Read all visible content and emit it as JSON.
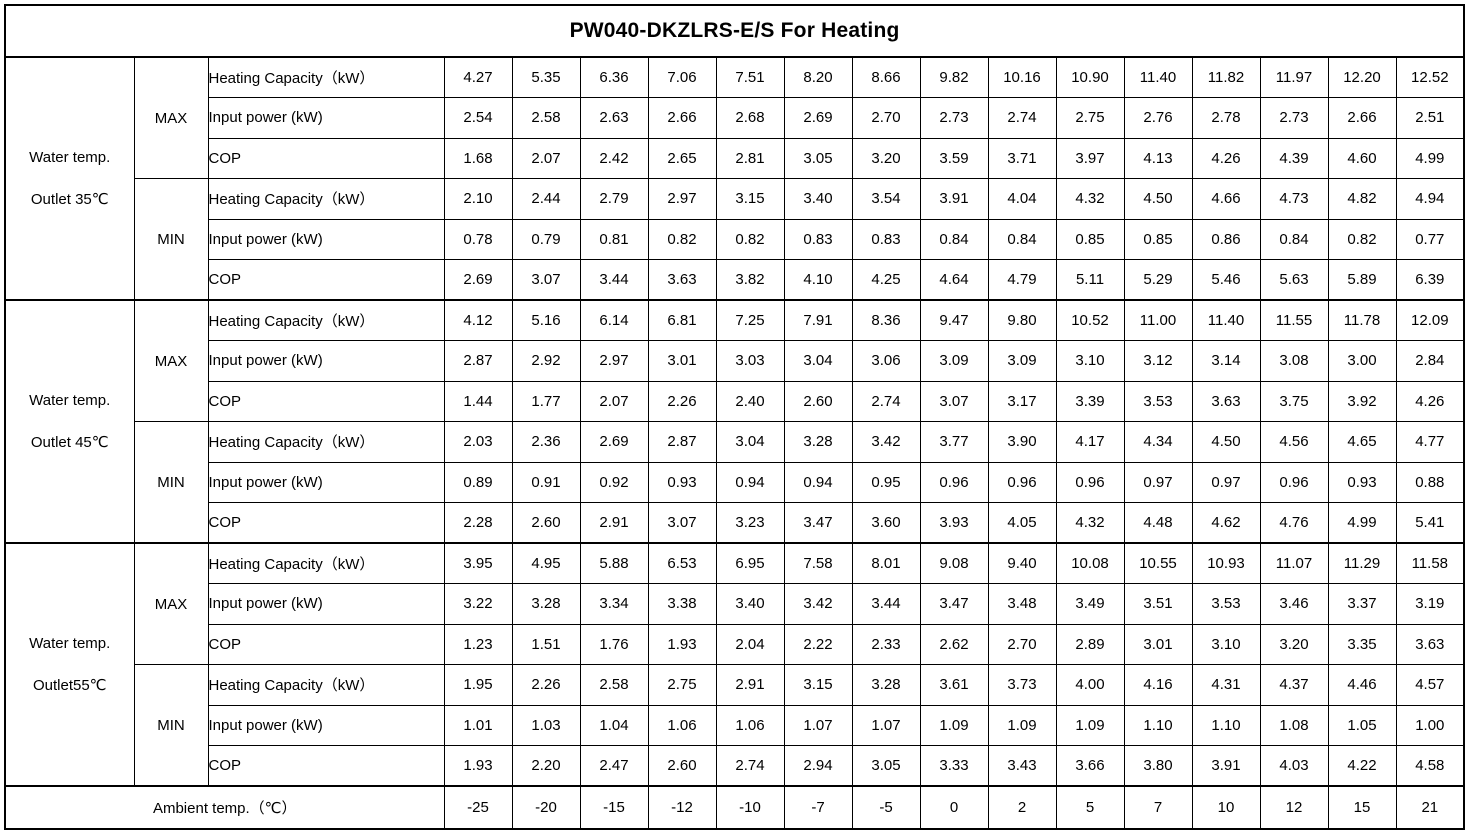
{
  "title": "PW040-DKZLRS-E/S For Heating",
  "colors": {
    "border": "#000000",
    "text": "#000000",
    "background": "#ffffff"
  },
  "row_labels": {
    "heating_capacity": "Heating Capacity（kW）",
    "input_power": "Input power (kW)",
    "cop": "COP",
    "max": "MAX",
    "min": "MIN"
  },
  "sections": [
    {
      "label_line1": "Water temp.",
      "label_line2": "Outlet 35℃",
      "max": {
        "heating_capacity": [
          "4.27",
          "5.35",
          "6.36",
          "7.06",
          "7.51",
          "8.20",
          "8.66",
          "9.82",
          "10.16",
          "10.90",
          "11.40",
          "11.82",
          "11.97",
          "12.20",
          "12.52"
        ],
        "input_power": [
          "2.54",
          "2.58",
          "2.63",
          "2.66",
          "2.68",
          "2.69",
          "2.70",
          "2.73",
          "2.74",
          "2.75",
          "2.76",
          "2.78",
          "2.73",
          "2.66",
          "2.51"
        ],
        "cop": [
          "1.68",
          "2.07",
          "2.42",
          "2.65",
          "2.81",
          "3.05",
          "3.20",
          "3.59",
          "3.71",
          "3.97",
          "4.13",
          "4.26",
          "4.39",
          "4.60",
          "4.99"
        ]
      },
      "min": {
        "heating_capacity": [
          "2.10",
          "2.44",
          "2.79",
          "2.97",
          "3.15",
          "3.40",
          "3.54",
          "3.91",
          "4.04",
          "4.32",
          "4.50",
          "4.66",
          "4.73",
          "4.82",
          "4.94"
        ],
        "input_power": [
          "0.78",
          "0.79",
          "0.81",
          "0.82",
          "0.82",
          "0.83",
          "0.83",
          "0.84",
          "0.84",
          "0.85",
          "0.85",
          "0.86",
          "0.84",
          "0.82",
          "0.77"
        ],
        "cop": [
          "2.69",
          "3.07",
          "3.44",
          "3.63",
          "3.82",
          "4.10",
          "4.25",
          "4.64",
          "4.79",
          "5.11",
          "5.29",
          "5.46",
          "5.63",
          "5.89",
          "6.39"
        ]
      }
    },
    {
      "label_line1": "Water temp.",
      "label_line2": "Outlet 45℃",
      "max": {
        "heating_capacity": [
          "4.12",
          "5.16",
          "6.14",
          "6.81",
          "7.25",
          "7.91",
          "8.36",
          "9.47",
          "9.80",
          "10.52",
          "11.00",
          "11.40",
          "11.55",
          "11.78",
          "12.09"
        ],
        "input_power": [
          "2.87",
          "2.92",
          "2.97",
          "3.01",
          "3.03",
          "3.04",
          "3.06",
          "3.09",
          "3.09",
          "3.10",
          "3.12",
          "3.14",
          "3.08",
          "3.00",
          "2.84"
        ],
        "cop": [
          "1.44",
          "1.77",
          "2.07",
          "2.26",
          "2.40",
          "2.60",
          "2.74",
          "3.07",
          "3.17",
          "3.39",
          "3.53",
          "3.63",
          "3.75",
          "3.92",
          "4.26"
        ]
      },
      "min": {
        "heating_capacity": [
          "2.03",
          "2.36",
          "2.69",
          "2.87",
          "3.04",
          "3.28",
          "3.42",
          "3.77",
          "3.90",
          "4.17",
          "4.34",
          "4.50",
          "4.56",
          "4.65",
          "4.77"
        ],
        "input_power": [
          "0.89",
          "0.91",
          "0.92",
          "0.93",
          "0.94",
          "0.94",
          "0.95",
          "0.96",
          "0.96",
          "0.96",
          "0.97",
          "0.97",
          "0.96",
          "0.93",
          "0.88"
        ],
        "cop": [
          "2.28",
          "2.60",
          "2.91",
          "3.07",
          "3.23",
          "3.47",
          "3.60",
          "3.93",
          "4.05",
          "4.32",
          "4.48",
          "4.62",
          "4.76",
          "4.99",
          "5.41"
        ]
      }
    },
    {
      "label_line1": "Water temp.",
      "label_line2": "Outlet55℃",
      "max": {
        "heating_capacity": [
          "3.95",
          "4.95",
          "5.88",
          "6.53",
          "6.95",
          "7.58",
          "8.01",
          "9.08",
          "9.40",
          "10.08",
          "10.55",
          "10.93",
          "11.07",
          "11.29",
          "11.58"
        ],
        "input_power": [
          "3.22",
          "3.28",
          "3.34",
          "3.38",
          "3.40",
          "3.42",
          "3.44",
          "3.47",
          "3.48",
          "3.49",
          "3.51",
          "3.53",
          "3.46",
          "3.37",
          "3.19"
        ],
        "cop": [
          "1.23",
          "1.51",
          "1.76",
          "1.93",
          "2.04",
          "2.22",
          "2.33",
          "2.62",
          "2.70",
          "2.89",
          "3.01",
          "3.10",
          "3.20",
          "3.35",
          "3.63"
        ]
      },
      "min": {
        "heating_capacity": [
          "1.95",
          "2.26",
          "2.58",
          "2.75",
          "2.91",
          "3.15",
          "3.28",
          "3.61",
          "3.73",
          "4.00",
          "4.16",
          "4.31",
          "4.37",
          "4.46",
          "4.57"
        ],
        "input_power": [
          "1.01",
          "1.03",
          "1.04",
          "1.06",
          "1.06",
          "1.07",
          "1.07",
          "1.09",
          "1.09",
          "1.09",
          "1.10",
          "1.10",
          "1.08",
          "1.05",
          "1.00"
        ],
        "cop": [
          "1.93",
          "2.20",
          "2.47",
          "2.60",
          "2.74",
          "2.94",
          "3.05",
          "3.33",
          "3.43",
          "3.66",
          "3.80",
          "3.91",
          "4.03",
          "4.22",
          "4.58"
        ]
      }
    }
  ],
  "ambient": {
    "label": "Ambient temp.（℃）",
    "values": [
      "-25",
      "-20",
      "-15",
      "-12",
      "-10",
      "-7",
      "-5",
      "0",
      "2",
      "5",
      "7",
      "10",
      "12",
      "15",
      "21"
    ]
  }
}
